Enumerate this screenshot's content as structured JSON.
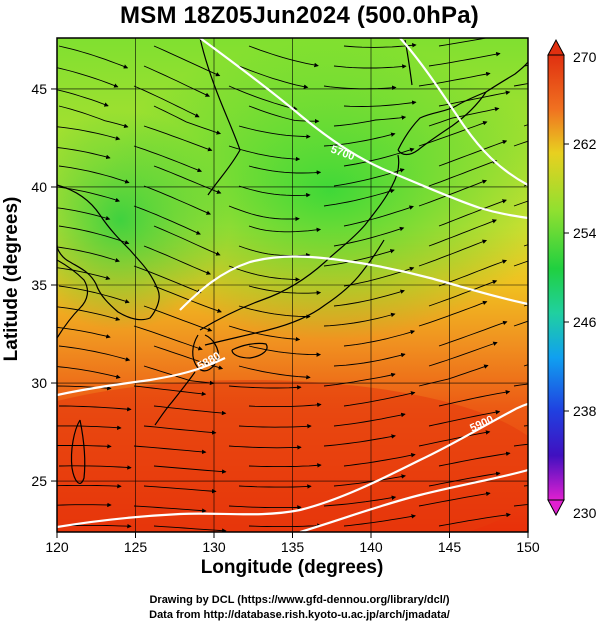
{
  "title": "MSM 18Z05Jun2024 (500.0hPa)",
  "xlabel": "Longitude (degrees)",
  "ylabel": "Latitude  (degrees)",
  "credit_line1": "Drawing by DCL (https://www.gfd-dennou.org/library/dcl/)",
  "credit_line2": "Data from http://database.rish.kyoto-u.ac.jp/arch/jmadata/",
  "map": {
    "lon_range": [
      120,
      150
    ],
    "lat_range": [
      22.4,
      47.6
    ],
    "lon_ticks": [
      "120",
      "125",
      "130",
      "135",
      "140",
      "145",
      "150"
    ],
    "lat_ticks": [
      "25",
      "30",
      "35",
      "40",
      "45"
    ],
    "grid": true,
    "field": "temperature",
    "contour_labels": [
      "5700",
      "5900",
      "5880"
    ],
    "colors": {
      "warm": "#e8300a",
      "mid": "#f0c020",
      "cool": "#30d030",
      "contour": "#ffffff",
      "streamline": "#000000",
      "coast": "#000000"
    }
  },
  "colorbar": {
    "min_label": "230",
    "max_label": "270",
    "tick_labels": [
      "270",
      "262",
      "254",
      "246",
      "238",
      "230"
    ]
  }
}
